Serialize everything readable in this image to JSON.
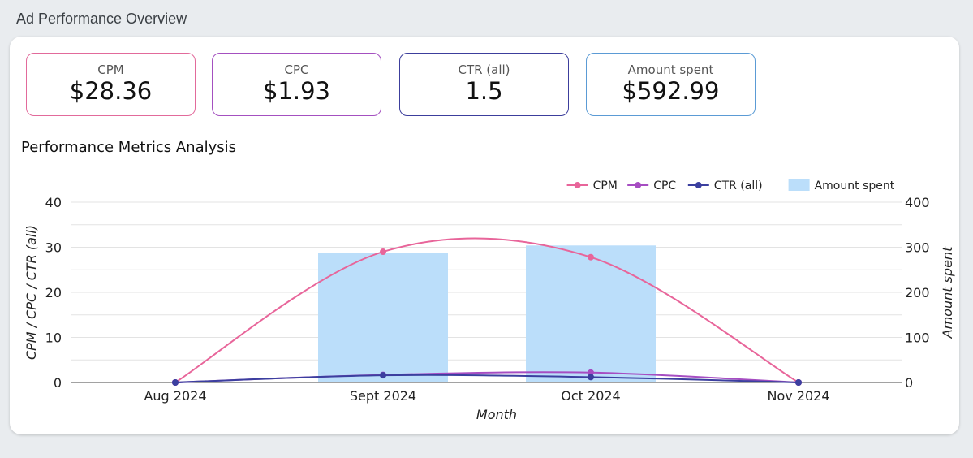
{
  "page": {
    "title": "Ad Performance Overview"
  },
  "kpis": [
    {
      "label": "CPM",
      "value": "$28.36",
      "color": "#e26a9b"
    },
    {
      "label": "CPC",
      "value": "$1.93",
      "color": "#a450c0"
    },
    {
      "label": "CTR (all)",
      "value": "1.5",
      "color": "#3c3e9c"
    },
    {
      "label": "Amount spent",
      "value": "$592.99",
      "color": "#5b9bd5"
    }
  ],
  "chart": {
    "title": "Performance Metrics Analysis"
  },
  "chart_data": {
    "type": "bar+line",
    "categories": [
      "Aug 2024",
      "Sept 2024",
      "Oct 2024",
      "Nov 2024"
    ],
    "xlabel": "Month",
    "ylabel_left": "CPM / CPC / CTR (all)",
    "ylabel_right": "Amount spent",
    "ylim_left": [
      0,
      40
    ],
    "ylim_right": [
      0,
      400
    ],
    "yticks_left": [
      0,
      10,
      20,
      30,
      40
    ],
    "yticks_right": [
      0,
      100,
      200,
      300,
      400
    ],
    "grid": true,
    "legend_position": "top-right",
    "series": [
      {
        "name": "CPM",
        "type": "line",
        "axis": "left",
        "color": "#e8659a",
        "values": [
          0,
          29,
          27.8,
          0
        ]
      },
      {
        "name": "CPC",
        "type": "line",
        "axis": "left",
        "color": "#a64dc2",
        "values": [
          0,
          1.7,
          2.2,
          0
        ]
      },
      {
        "name": "CTR (all)",
        "type": "line",
        "axis": "left",
        "color": "#3b3f9f",
        "values": [
          0,
          1.6,
          1.2,
          0
        ]
      },
      {
        "name": "Amount spent",
        "type": "bar",
        "axis": "right",
        "color": "#bbdefa",
        "values": [
          0,
          288,
          304,
          0
        ]
      }
    ]
  }
}
